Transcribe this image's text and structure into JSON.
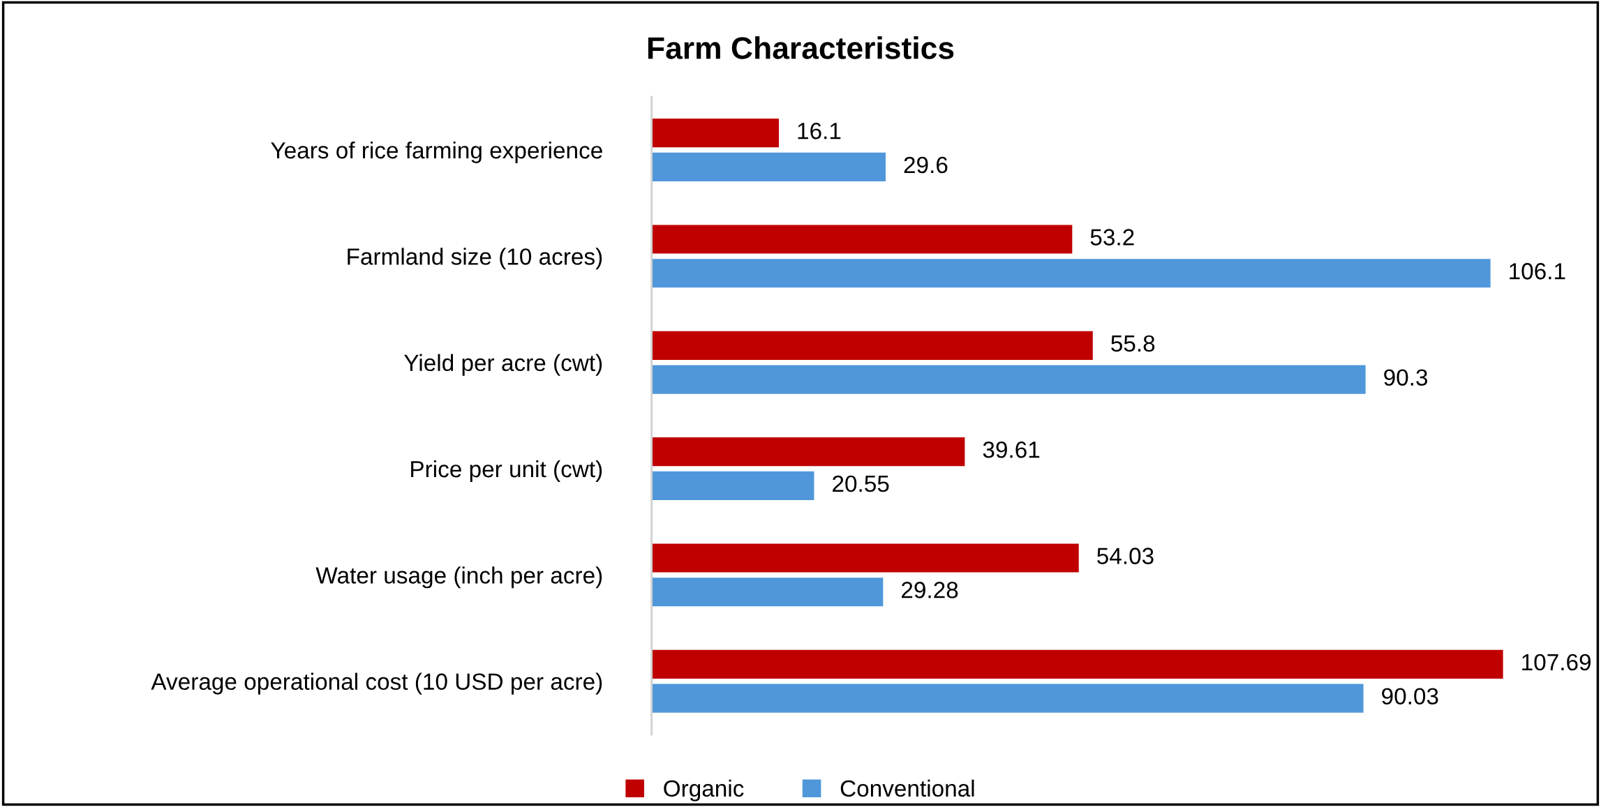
{
  "chart_data": {
    "type": "bar",
    "orientation": "horizontal",
    "title": "Farm Characteristics",
    "categories": [
      "Years of rice farming experience",
      "Farmland size (10 acres)",
      "Yield per acre (cwt)",
      "Price per unit (cwt)",
      "Water usage (inch per acre)",
      "Average operational cost (10 USD per acre)"
    ],
    "series": [
      {
        "name": "Organic",
        "color": "#c00000",
        "values": [
          16.1,
          53.2,
          55.8,
          39.61,
          54.03,
          107.69
        ]
      },
      {
        "name": "Conventional",
        "color": "#4f97da",
        "values": [
          29.6,
          106.1,
          90.3,
          20.55,
          29.28,
          90.03
        ]
      }
    ],
    "data_labels": true,
    "legend": "bottom",
    "grid": false
  }
}
